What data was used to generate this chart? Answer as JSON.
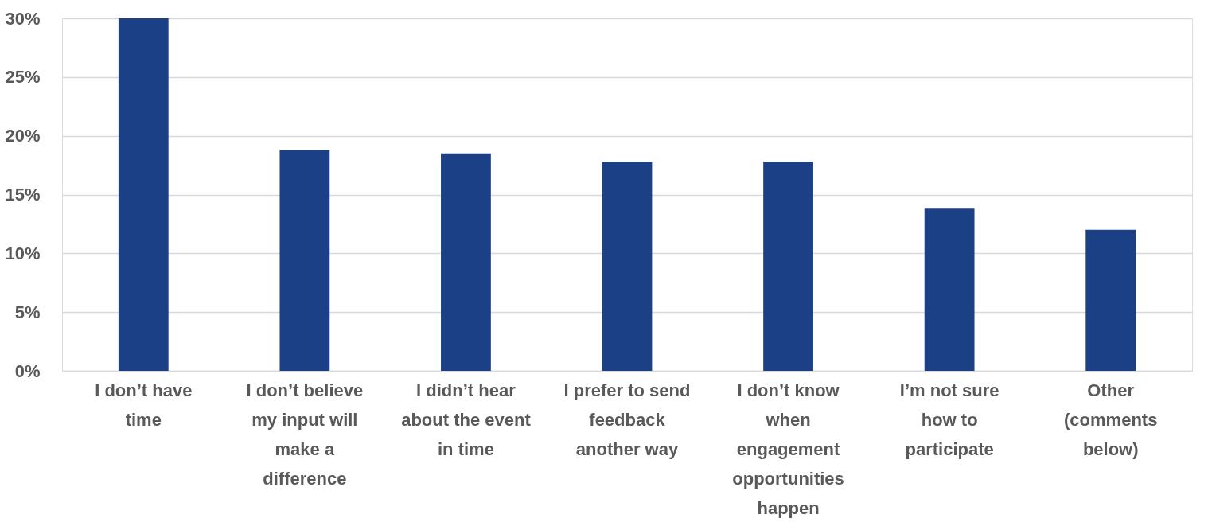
{
  "chart_data": {
    "type": "bar",
    "categories": [
      "I don’t have\ntime",
      "I don’t believe\nmy input will\nmake a\ndifference",
      "I didn’t hear\nabout the event\nin time",
      "I prefer to send\nfeedback\nanother way",
      "I don’t know\nwhen\nengagement\nopportunities\nhappen",
      "I’m not sure\nhow to\nparticipate",
      "Other\n(comments\nbelow)"
    ],
    "values": [
      30,
      18.8,
      18.5,
      17.8,
      17.8,
      13.8,
      12.0
    ],
    "color": "#1c4085",
    "ylim": [
      0,
      30
    ],
    "yticks": [
      {
        "value": 0,
        "label": "0%"
      },
      {
        "value": 5,
        "label": "5%"
      },
      {
        "value": 10,
        "label": "10%"
      },
      {
        "value": 15,
        "label": "15%"
      },
      {
        "value": 20,
        "label": "20%"
      },
      {
        "value": 25,
        "label": "25%"
      },
      {
        "value": 30,
        "label": "30%"
      }
    ],
    "grid": "y"
  }
}
